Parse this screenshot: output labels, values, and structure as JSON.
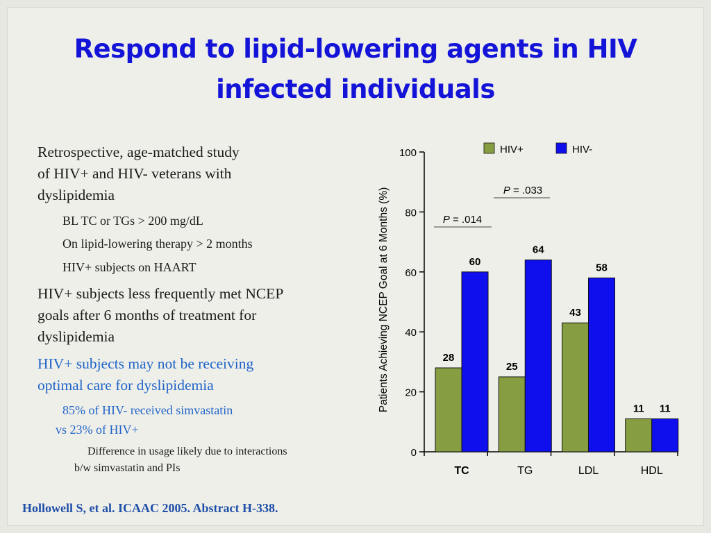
{
  "title_line1": "Respond to lipid-lowering agents in HIV",
  "title_line2": "infected individuals",
  "bullets": {
    "b1_line1": "Retrospective, age-matched study",
    "b1_line2": "of HIV+ and HIV- veterans with",
    "b1_line3": "dyslipidemia",
    "s1": "BL TC or TGs > 200 mg/dL",
    "s2": "On lipid-lowering therapy > 2 months",
    "s3": "HIV+ subjects on HAART",
    "b2_line1": "HIV+ subjects less frequently met NCEP",
    "b2_line2": "goals after 6 months of treatment for",
    "b2_line3": "dyslipidemia",
    "b3_line1": "HIV+ subjects may not be receiving",
    "b3_line2": "optimal care for dyslipidemia",
    "s4_line1": "85% of HIV- received simvastatin",
    "s4_line2": "vs 23% of HIV+",
    "t1_line1": "Difference in usage likely due to interactions",
    "t1_line2": "b/w simvastatin and PIs"
  },
  "reference": "Hollowell S, et al. ICAAC 2005. Abstract H-338.",
  "colors": {
    "title": "#1414d8",
    "hiv_pos": "#869e41",
    "hiv_neg": "#0f0fee",
    "accent_text": "#1f64c8"
  },
  "chart_data": {
    "type": "bar",
    "ylabel": "Patients Achieving NCEP Goal at 6 Months (%)",
    "ylim": [
      0,
      100
    ],
    "yticks": [
      "0",
      "20",
      "40",
      "60",
      "80",
      "100"
    ],
    "categories": [
      "TC",
      "TG",
      "LDL",
      "HDL"
    ],
    "series": [
      {
        "name": "HIV+",
        "color": "#869e41",
        "values": [
          28,
          25,
          43,
          11
        ],
        "labels": [
          "28",
          "25",
          "43",
          "11"
        ]
      },
      {
        "name": "HIV-",
        "color": "#0f0fee",
        "values": [
          60,
          64,
          58,
          11
        ],
        "labels": [
          "60",
          "64",
          "58",
          "11"
        ]
      }
    ],
    "annotations": [
      {
        "prefix": "P",
        "text": " = .014"
      },
      {
        "prefix": "P",
        "text": " = .033"
      }
    ],
    "legend_position": "top"
  }
}
